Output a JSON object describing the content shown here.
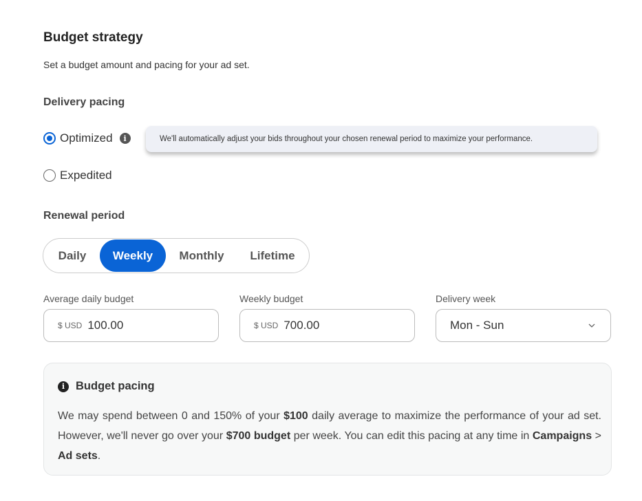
{
  "title": "Budget strategy",
  "subtitle": "Set a budget amount and pacing for your ad set.",
  "delivery_pacing": {
    "heading": "Delivery pacing",
    "options": [
      {
        "label": "Optimized",
        "selected": true
      },
      {
        "label": "Expedited",
        "selected": false
      }
    ],
    "tooltip": "We'll automatically adjust your bids throughout your chosen renewal period to maximize your performance."
  },
  "renewal": {
    "heading": "Renewal period",
    "options": [
      "Daily",
      "Weekly",
      "Monthly",
      "Lifetime"
    ],
    "selected": "Weekly"
  },
  "fields": {
    "avg": {
      "label": "Average daily budget",
      "currency": "$ USD",
      "value": "100.00"
    },
    "weekly": {
      "label": "Weekly budget",
      "currency": "$ USD",
      "value": "700.00"
    },
    "week": {
      "label": "Delivery week",
      "value": "Mon - Sun"
    }
  },
  "pacing_box": {
    "title": "Budget pacing",
    "t1": "We may spend between 0 and 150% of your ",
    "b1": "$100",
    "t2": " daily average to maximize the performance of your ad set. However, we'll never go over your ",
    "b2": "$700 budget",
    "t3": " per week. You can edit this pacing at any time in ",
    "b3": "Campaigns",
    "t4": " > ",
    "b4": "Ad sets",
    "t5": "."
  },
  "colors": {
    "accent": "#0a64d6"
  }
}
